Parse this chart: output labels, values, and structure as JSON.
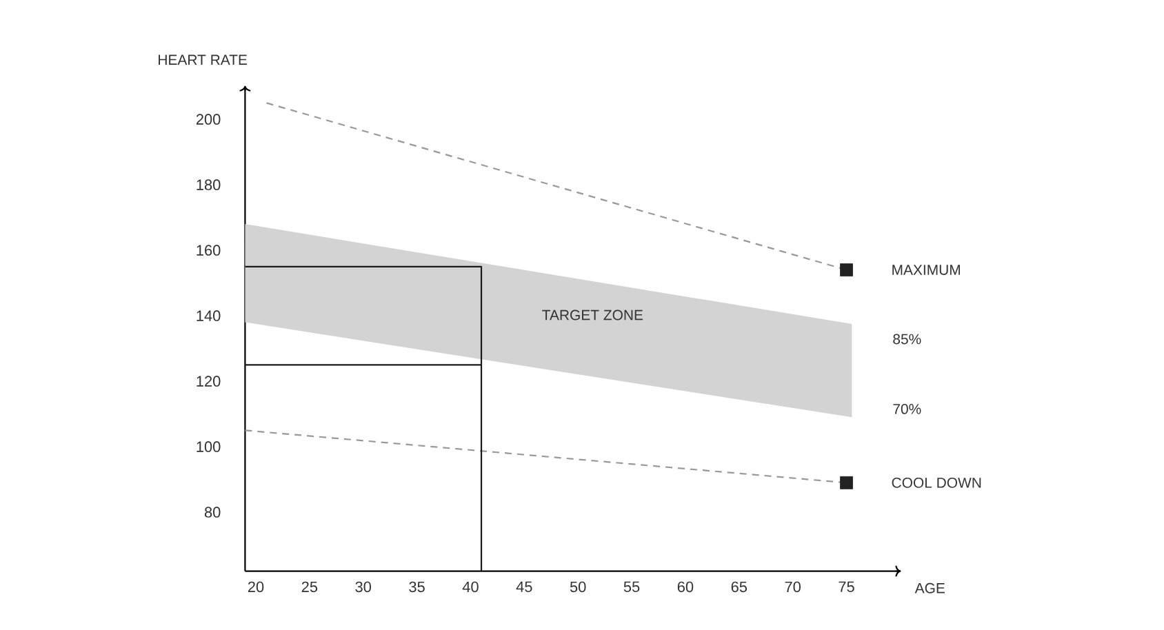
{
  "chart_data": {
    "type": "line",
    "xlabel": "AGE",
    "ylabel": "HEART RATE",
    "xlim": [
      19,
      80
    ],
    "ylim": [
      62,
      210
    ],
    "xticks": [
      20,
      25,
      30,
      35,
      40,
      45,
      50,
      55,
      60,
      65,
      70,
      75
    ],
    "yticks": [
      80,
      100,
      120,
      140,
      160,
      180,
      200
    ],
    "grid": false,
    "marker": "none",
    "series": [
      {
        "type": "area",
        "color": "#d3d3d3",
        "x": [
          19,
          75.5
        ],
        "values": [
          null,
          null
        ],
        "lower": [
          138,
          109
        ],
        "upper": [
          168,
          137.5
        ]
      },
      {
        "name": "MAXIMUM",
        "color": "#999999",
        "line_style": "dashed",
        "x": [
          21,
          75
        ],
        "values": [
          205,
          154
        ]
      },
      {
        "name": "COOL DOWN",
        "color": "#999999",
        "line_style": "dashed",
        "x": [
          19,
          75
        ],
        "values": [
          105,
          89
        ]
      },
      {
        "color": "#1a1a1a",
        "line_style": "solid",
        "x": [
          19,
          41,
          41
        ],
        "values": [
          155,
          155,
          62
        ]
      },
      {
        "color": "#1a1a1a",
        "line_style": "solid",
        "x": [
          19,
          41
        ],
        "values": [
          125,
          125
        ]
      },
      {
        "type": "scatter",
        "color": "#222222",
        "marker": "square",
        "x": [
          75,
          75
        ],
        "values": [
          154,
          89
        ]
      }
    ],
    "annotations": [
      "85%",
      "70%",
      "TARGET ZONE"
    ]
  }
}
